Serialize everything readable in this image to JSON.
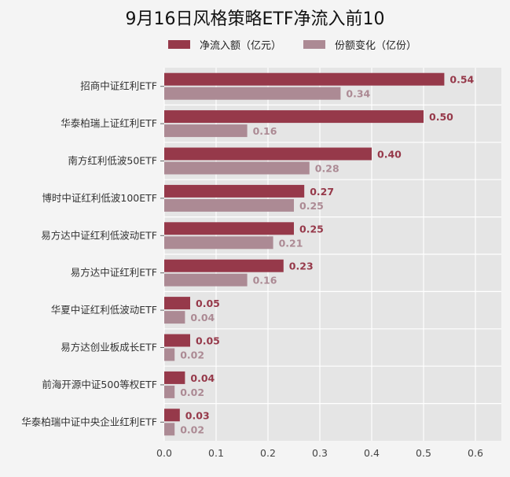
{
  "chart_data": {
    "type": "bar",
    "orientation": "horizontal",
    "title": "9月16日风格策略ETF净流入前10",
    "categories": [
      "招商中证红利ETF",
      "华泰柏瑞上证红利ETF",
      "南方红利低波50ETF",
      "博时中证红利低波100ETF",
      "易方达中证红利低波动ETF",
      "易方达中证红利ETF",
      "华夏中证红利低波动ETF",
      "易方达创业板成长ETF",
      "前海开源中证500等权ETF",
      "华泰柏瑞中证中央企业红利ETF"
    ],
    "series": [
      {
        "name": "净流入额（亿元）",
        "color": "#96394a",
        "values": [
          0.54,
          0.5,
          0.4,
          0.27,
          0.25,
          0.23,
          0.05,
          0.05,
          0.04,
          0.03
        ]
      },
      {
        "name": "份额变化（亿份）",
        "color": "#ac8a94",
        "values": [
          0.34,
          0.16,
          0.28,
          0.25,
          0.21,
          0.16,
          0.04,
          0.02,
          0.02,
          0.02
        ]
      }
    ],
    "value_labels": [
      [
        "0.54",
        "0.50",
        "0.40",
        "0.27",
        "0.25",
        "0.23",
        "0.05",
        "0.05",
        "0.04",
        "0.03"
      ],
      [
        "0.34",
        "0.16",
        "0.28",
        "0.25",
        "0.21",
        "0.16",
        "0.04",
        "0.02",
        "0.02",
        "0.02"
      ]
    ],
    "xlim": [
      0,
      0.65
    ],
    "xticks": [
      "0.0",
      "0.1",
      "0.2",
      "0.3",
      "0.4",
      "0.5",
      "0.6"
    ],
    "grid": true,
    "legend_position": "top"
  }
}
